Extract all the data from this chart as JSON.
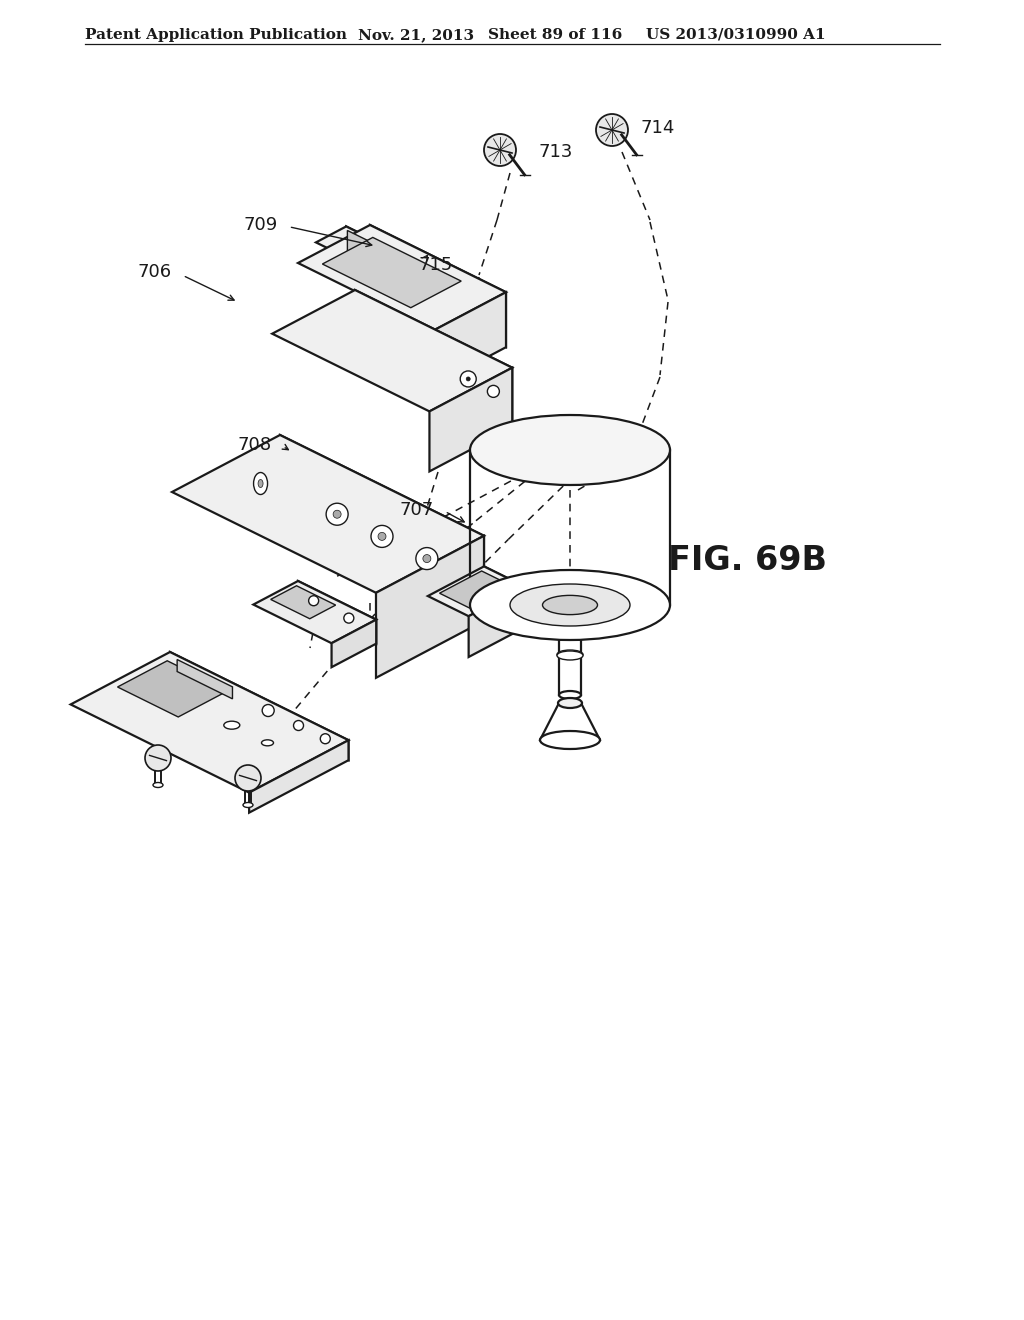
{
  "bg_color": "#ffffff",
  "line_color": "#1a1a1a",
  "header_text": "Patent Application Publication",
  "header_date": "Nov. 21, 2013",
  "header_sheet": "Sheet 89 of 116",
  "header_patent": "US 2013/0310990 A1",
  "fig_label": "FIG. 69B",
  "label_fontsize": 13,
  "header_fontsize": 11,
  "lw_main": 1.6,
  "lw_thin": 1.0,
  "lw_dash": 1.1
}
